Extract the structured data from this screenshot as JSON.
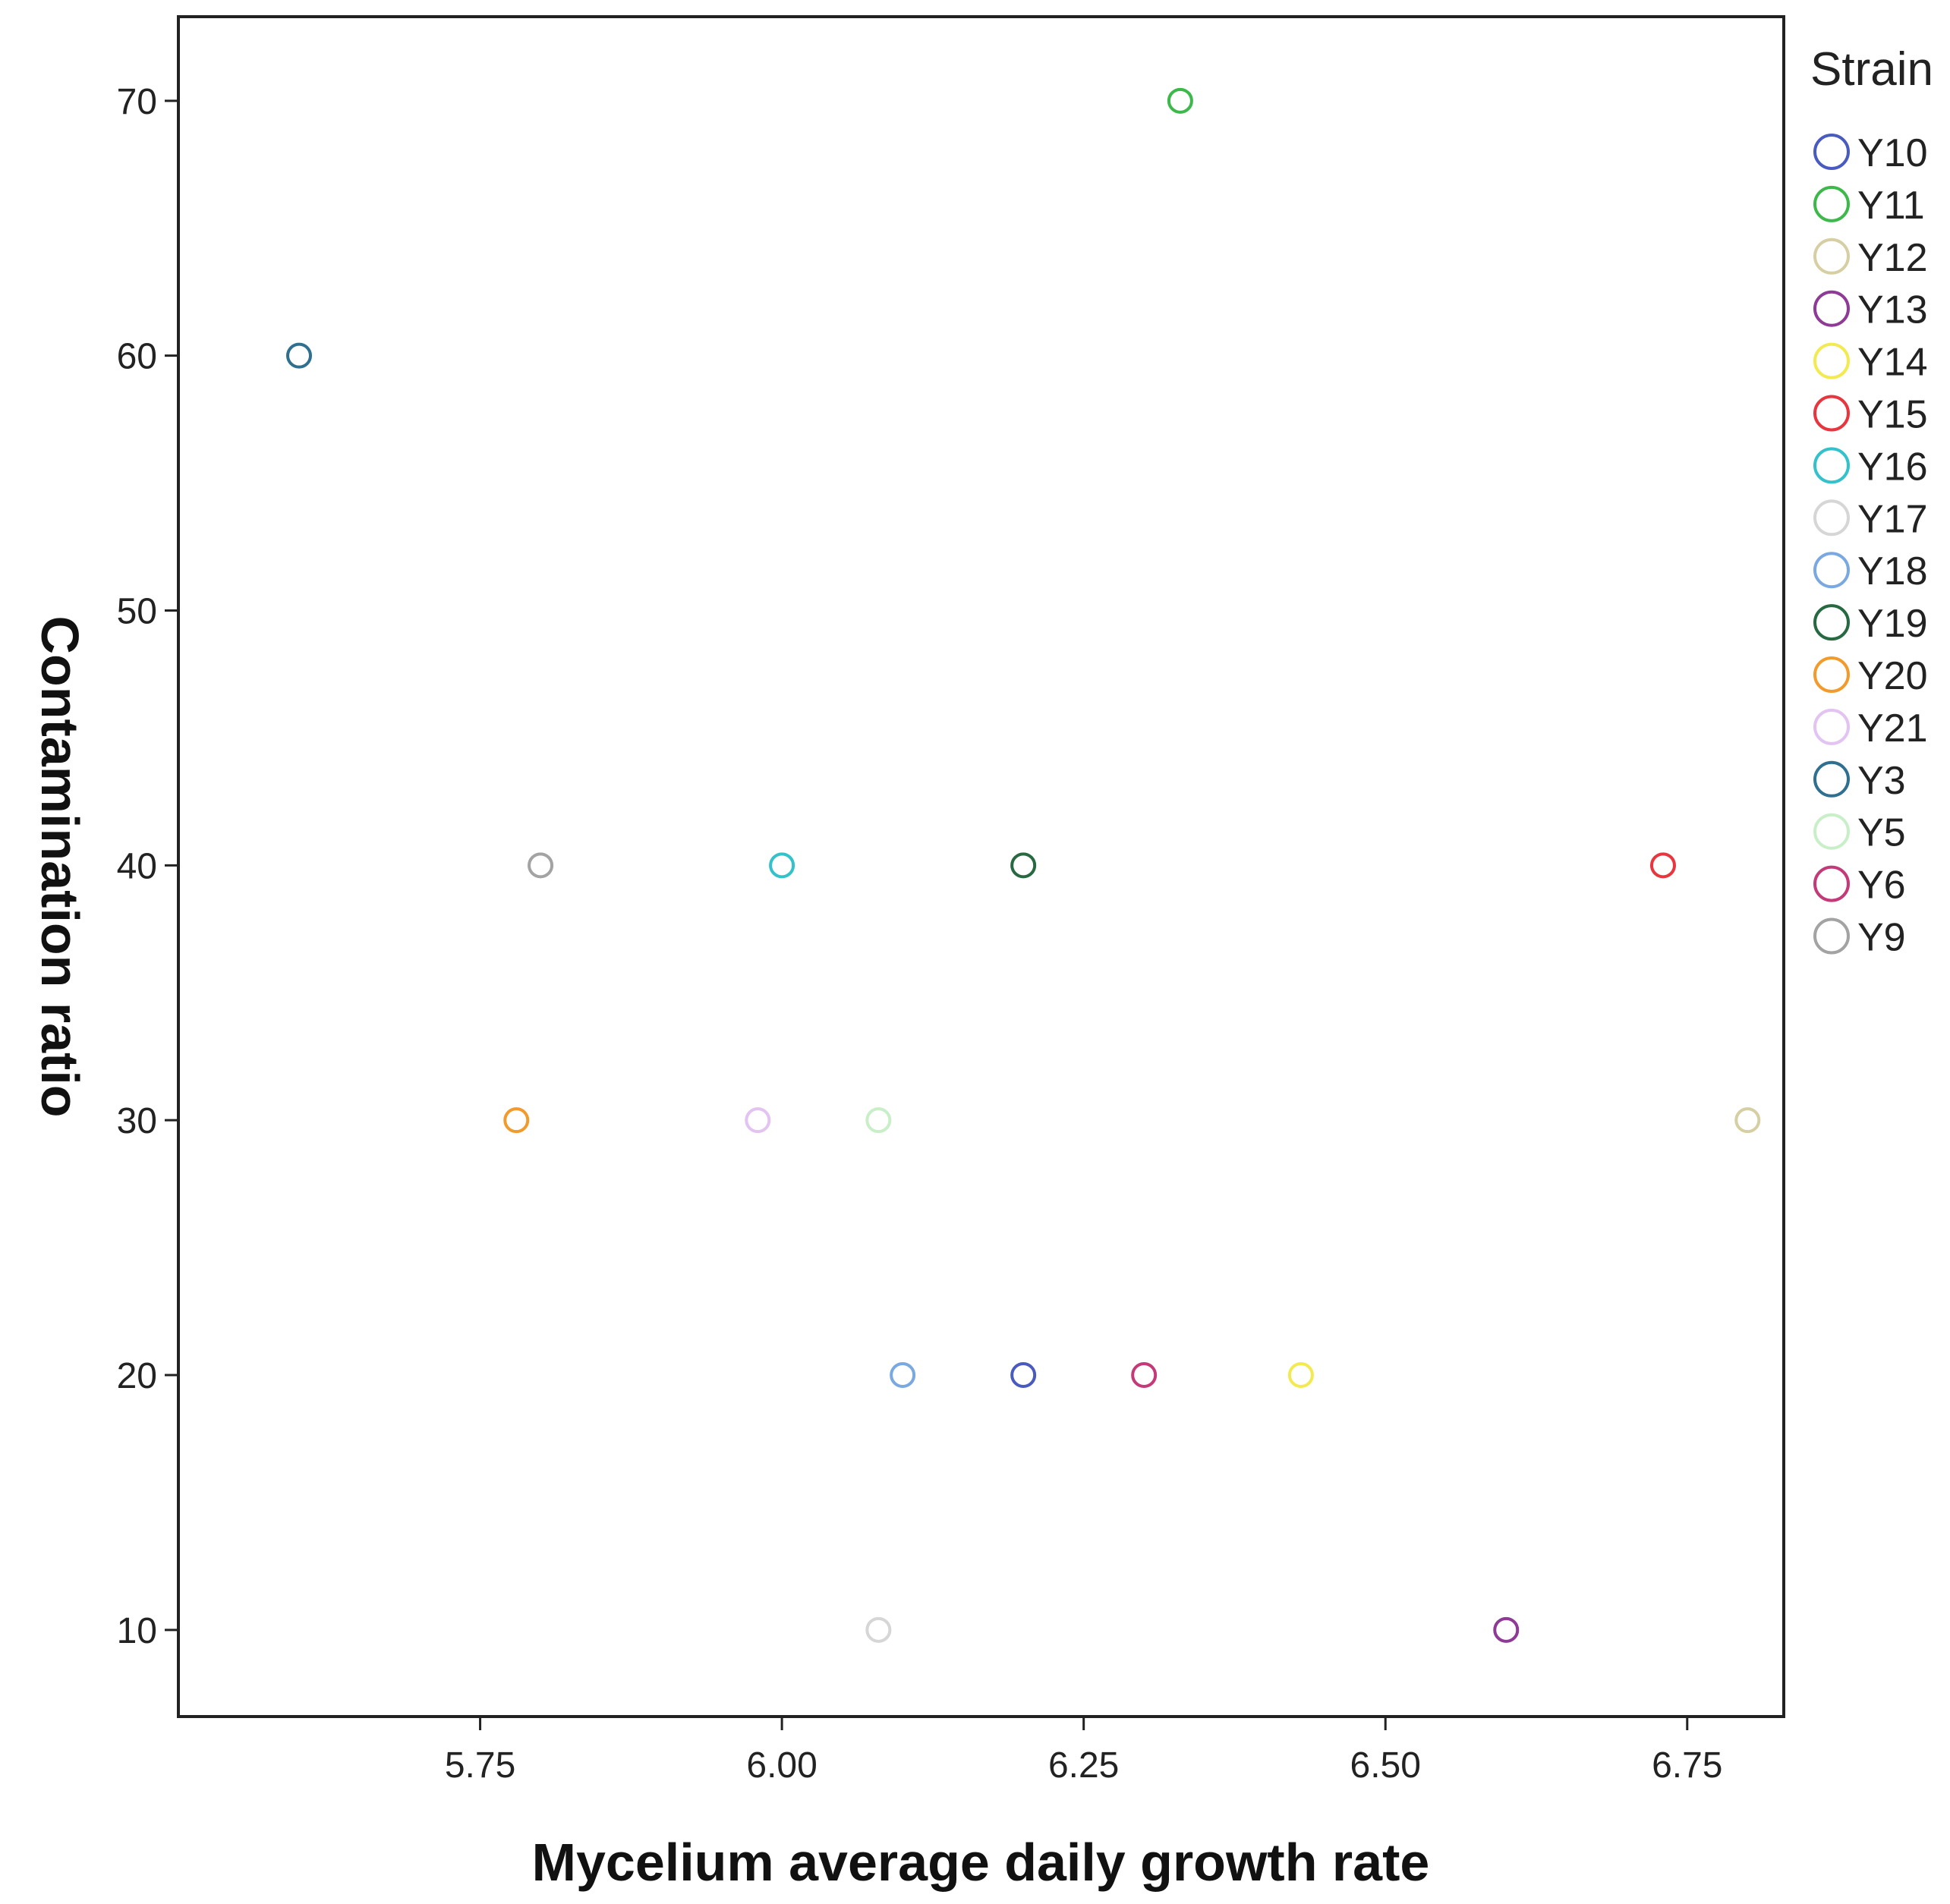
{
  "chart_data": {
    "type": "scatter",
    "xlabel": "Mycelium average daily growth rate",
    "ylabel": "Contamination ratio",
    "xlim": [
      5.5,
      6.83
    ],
    "ylim": [
      6.6,
      73.3
    ],
    "xticks": [
      5.75,
      6.0,
      6.25,
      6.5,
      6.75
    ],
    "xtick_labels": [
      "5.75",
      "6.00",
      "6.25",
      "6.50",
      "6.75"
    ],
    "yticks": [
      10,
      20,
      30,
      40,
      50,
      60,
      70
    ],
    "ytick_labels": [
      "10",
      "20",
      "30",
      "40",
      "50",
      "60",
      "70"
    ],
    "grid": false,
    "marker": "hollow-circle",
    "legend": {
      "title": "Strain",
      "placement": "right"
    },
    "series": [
      {
        "name": "Y10",
        "color": "#4a5bbf",
        "x": [
          6.2
        ],
        "y": [
          20
        ]
      },
      {
        "name": "Y11",
        "color": "#3cb94a",
        "x": [
          6.33
        ],
        "y": [
          70
        ]
      },
      {
        "name": "Y12",
        "color": "#d7cfa4",
        "x": [
          6.8
        ],
        "y": [
          30
        ]
      },
      {
        "name": "Y13",
        "color": "#8e3a96",
        "x": [
          6.6
        ],
        "y": [
          10
        ]
      },
      {
        "name": "Y14",
        "color": "#f3ea52",
        "x": [
          6.43
        ],
        "y": [
          20
        ]
      },
      {
        "name": "Y15",
        "color": "#e9353d",
        "x": [
          6.73
        ],
        "y": [
          40
        ]
      },
      {
        "name": "Y16",
        "color": "#33c1cc",
        "x": [
          6.0
        ],
        "y": [
          40
        ]
      },
      {
        "name": "Y17",
        "color": "#d6d6d6",
        "x": [
          6.08
        ],
        "y": [
          10
        ]
      },
      {
        "name": "Y18",
        "color": "#7aa8e0",
        "x": [
          6.1
        ],
        "y": [
          20
        ]
      },
      {
        "name": "Y19",
        "color": "#276a42",
        "x": [
          6.2
        ],
        "y": [
          40
        ]
      },
      {
        "name": "Y20",
        "color": "#f39a2c",
        "x": [
          5.78
        ],
        "y": [
          30
        ]
      },
      {
        "name": "Y21",
        "color": "#e2c3f2",
        "x": [
          5.98
        ],
        "y": [
          30
        ]
      },
      {
        "name": "Y3",
        "color": "#2f6f8f",
        "x": [
          5.6
        ],
        "y": [
          60
        ]
      },
      {
        "name": "Y5",
        "color": "#c9efc9",
        "x": [
          6.08
        ],
        "y": [
          30
        ]
      },
      {
        "name": "Y6",
        "color": "#c43a78",
        "x": [
          6.3
        ],
        "y": [
          20
        ]
      },
      {
        "name": "Y9",
        "color": "#a3a3a3",
        "x": [
          5.8
        ],
        "y": [
          40
        ]
      }
    ]
  }
}
